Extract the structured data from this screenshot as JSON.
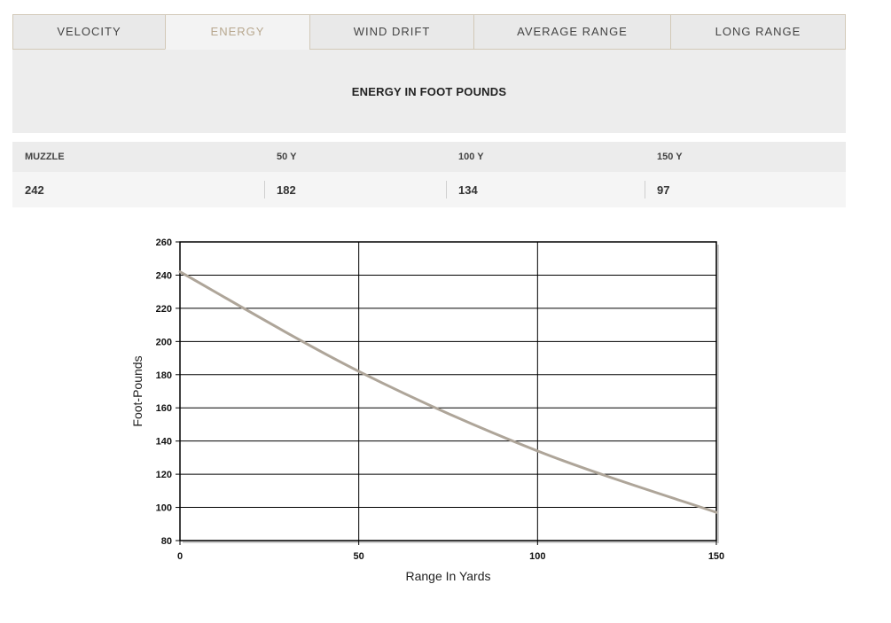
{
  "tabs": [
    {
      "label": "VELOCITY",
      "active": false
    },
    {
      "label": "ENERGY",
      "active": true
    },
    {
      "label": "WIND DRIFT",
      "active": false
    },
    {
      "label": "AVERAGE RANGE",
      "active": false
    },
    {
      "label": "LONG RANGE",
      "active": false
    }
  ],
  "panel": {
    "title": "ENERGY IN FOOT POUNDS"
  },
  "table": {
    "headers": [
      "MUZZLE",
      "50 Y",
      "100 Y",
      "150 Y"
    ],
    "values": [
      "242",
      "182",
      "134",
      "97"
    ]
  },
  "colors": {
    "active_tab_text": "#b8a88f",
    "line": "#aea599",
    "grid": "#000000"
  },
  "chart_data": {
    "type": "line",
    "xlabel": "Range In Yards",
    "ylabel": "Foot-Pounds",
    "xlim": [
      0,
      150
    ],
    "ylim": [
      80,
      260
    ],
    "xticks": [
      0,
      50,
      100,
      150
    ],
    "yticks": [
      80,
      100,
      120,
      140,
      160,
      180,
      200,
      220,
      240,
      260
    ],
    "grid": true,
    "series": [
      {
        "x": [
          0,
          50,
          100,
          150
        ],
        "values": [
          242,
          182,
          134,
          97
        ]
      }
    ]
  }
}
